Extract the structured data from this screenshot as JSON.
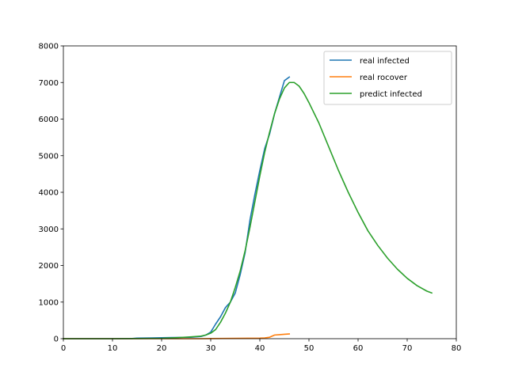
{
  "chart_data": {
    "type": "line",
    "title": "",
    "xlabel": "",
    "ylabel": "",
    "xlim": [
      0,
      80
    ],
    "ylim": [
      0,
      8000
    ],
    "xticks": [
      0,
      10,
      20,
      30,
      40,
      50,
      60,
      70,
      80
    ],
    "yticks": [
      0,
      1000,
      2000,
      3000,
      4000,
      5000,
      6000,
      7000,
      8000
    ],
    "xtick_labels": [
      "0",
      "10",
      "20",
      "30",
      "40",
      "50",
      "60",
      "70",
      "80"
    ],
    "ytick_labels": [
      "0",
      "1000",
      "2000",
      "3000",
      "4000",
      "5000",
      "6000",
      "7000",
      "8000"
    ],
    "grid": false,
    "legend_position": "top-right",
    "series": [
      {
        "name": "real infected",
        "color": "#1f77b4",
        "x": [
          0,
          5,
          10,
          14,
          15,
          18,
          20,
          22,
          24,
          26,
          28,
          29,
          30,
          31,
          32,
          33,
          34,
          35,
          36,
          37,
          38,
          39,
          40,
          41,
          42,
          43,
          44,
          45,
          46
        ],
        "y": [
          0,
          0,
          0,
          5,
          15,
          20,
          25,
          30,
          35,
          40,
          60,
          100,
          180,
          400,
          600,
          850,
          1000,
          1250,
          1750,
          2350,
          3250,
          3950,
          4600,
          5200,
          5600,
          6150,
          6600,
          7050,
          7150
        ]
      },
      {
        "name": "real rocover",
        "color": "#ff7f0e",
        "x": [
          0,
          10,
          20,
          28,
          30,
          35,
          40,
          41,
          42,
          43,
          44,
          45,
          46
        ],
        "y": [
          0,
          0,
          0,
          0,
          5,
          10,
          15,
          20,
          40,
          100,
          110,
          120,
          130
        ]
      },
      {
        "name": "predict infected",
        "color": "#2ca02c",
        "x": [
          0,
          5,
          10,
          15,
          20,
          22,
          24,
          26,
          28,
          29,
          30,
          31,
          32,
          33,
          34,
          35,
          36,
          37,
          38,
          39,
          40,
          41,
          42,
          43,
          44,
          45,
          46,
          47,
          48,
          49,
          50,
          52,
          54,
          56,
          58,
          60,
          62,
          64,
          66,
          68,
          70,
          72,
          74,
          75
        ],
        "y": [
          0,
          0,
          0,
          3,
          10,
          20,
          35,
          50,
          70,
          100,
          150,
          250,
          450,
          700,
          1000,
          1400,
          1850,
          2400,
          3050,
          3750,
          4450,
          5100,
          5650,
          6150,
          6550,
          6850,
          7000,
          7000,
          6900,
          6700,
          6450,
          5900,
          5250,
          4600,
          4000,
          3450,
          2950,
          2550,
          2200,
          1900,
          1650,
          1450,
          1300,
          1250
        ]
      }
    ]
  }
}
